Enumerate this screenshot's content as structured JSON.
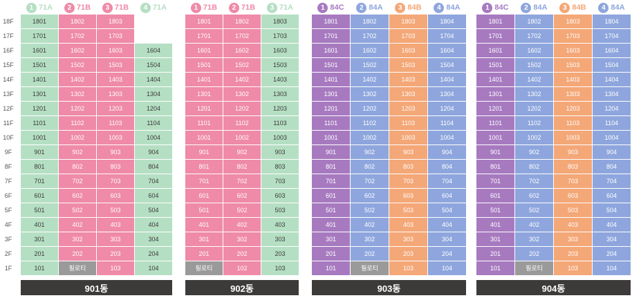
{
  "colors": {
    "pink": "#ef8aa8",
    "green": "#b5dfc3",
    "purple": "#a77ac0",
    "blue": "#8ea6dd",
    "orange": "#f4a777",
    "gray": "#9a9a9a",
    "footer": "#3d3b3a"
  },
  "floors": [
    "18F",
    "17F",
    "16F",
    "15F",
    "14F",
    "13F",
    "12F",
    "11F",
    "10F",
    "9F",
    "8F",
    "7F",
    "6F",
    "5F",
    "4F",
    "3F",
    "2F",
    "1F"
  ],
  "pilotis_label": "필로티",
  "buildings": [
    {
      "name": "901동",
      "types": [
        {
          "num": "1",
          "type": "71A",
          "color": "green",
          "top": 18
        },
        {
          "num": "2",
          "type": "71B",
          "color": "pink",
          "top": 18
        },
        {
          "num": "3",
          "type": "71B",
          "color": "pink",
          "top": 18
        },
        {
          "num": "4",
          "type": "71A",
          "color": "green",
          "top": 16
        }
      ],
      "pilotis_col": 1
    },
    {
      "name": "902동",
      "types": [
        {
          "num": "1",
          "type": "71B",
          "color": "pink",
          "top": 18
        },
        {
          "num": "2",
          "type": "71B",
          "color": "pink",
          "top": 18
        },
        {
          "num": "3",
          "type": "71A",
          "color": "green",
          "top": 18
        }
      ],
      "pilotis_col": 0
    },
    {
      "name": "903동",
      "types": [
        {
          "num": "1",
          "type": "84C",
          "color": "purple",
          "top": 18
        },
        {
          "num": "2",
          "type": "84A",
          "color": "blue",
          "top": 18
        },
        {
          "num": "3",
          "type": "84B",
          "color": "orange",
          "top": 18
        },
        {
          "num": "4",
          "type": "84A",
          "color": "blue",
          "top": 18
        }
      ],
      "pilotis_col": 1
    },
    {
      "name": "904동",
      "types": [
        {
          "num": "1",
          "type": "84C",
          "color": "purple",
          "top": 18
        },
        {
          "num": "2",
          "type": "84A",
          "color": "blue",
          "top": 18
        },
        {
          "num": "3",
          "type": "84B",
          "color": "orange",
          "top": 18
        },
        {
          "num": "4",
          "type": "84A",
          "color": "blue",
          "top": 18
        }
      ],
      "pilotis_col": 1
    }
  ]
}
